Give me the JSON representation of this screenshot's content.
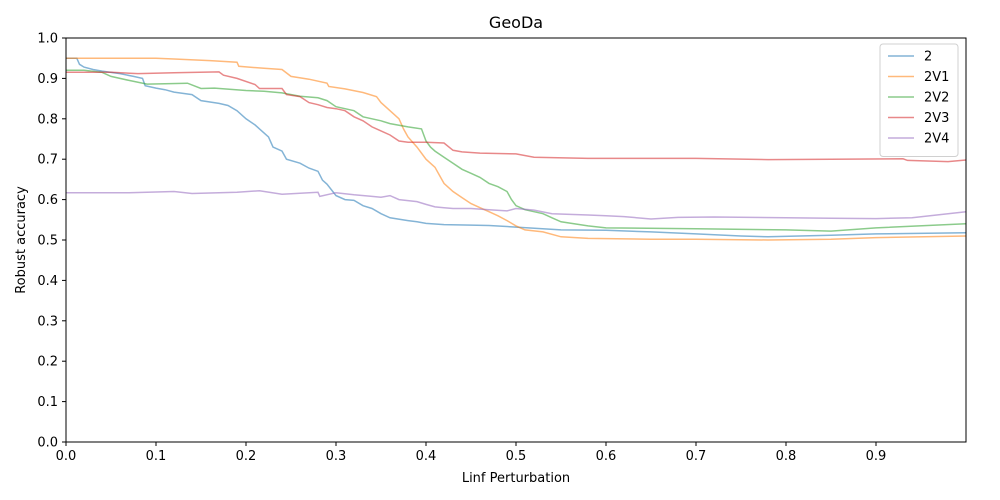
{
  "chart_data": {
    "type": "line",
    "title": "GeoDa",
    "xlabel": "Linf Perturbation",
    "ylabel": "Robust accuracy",
    "xlim": [
      0,
      1.0
    ],
    "ylim": [
      0,
      1.0
    ],
    "xticks": [
      "0.0",
      "0.1",
      "0.2",
      "0.3",
      "0.4",
      "0.5",
      "0.6",
      "0.7",
      "0.8",
      "0.9"
    ],
    "yticks": [
      "0.0",
      "0.1",
      "0.2",
      "0.3",
      "0.4",
      "0.5",
      "0.6",
      "0.7",
      "0.8",
      "0.9",
      "1.0"
    ],
    "grid": false,
    "legend": "top-right",
    "series": [
      {
        "name": "2",
        "color": "#1f77b4",
        "points": [
          [
            0.0,
            0.95
          ],
          [
            0.012,
            0.95
          ],
          [
            0.015,
            0.935
          ],
          [
            0.02,
            0.928
          ],
          [
            0.03,
            0.922
          ],
          [
            0.04,
            0.918
          ],
          [
            0.06,
            0.912
          ],
          [
            0.075,
            0.905
          ],
          [
            0.085,
            0.9
          ],
          [
            0.088,
            0.882
          ],
          [
            0.1,
            0.876
          ],
          [
            0.11,
            0.872
          ],
          [
            0.12,
            0.866
          ],
          [
            0.14,
            0.86
          ],
          [
            0.15,
            0.845
          ],
          [
            0.17,
            0.838
          ],
          [
            0.18,
            0.833
          ],
          [
            0.19,
            0.82
          ],
          [
            0.2,
            0.8
          ],
          [
            0.21,
            0.785
          ],
          [
            0.215,
            0.775
          ],
          [
            0.225,
            0.755
          ],
          [
            0.23,
            0.73
          ],
          [
            0.24,
            0.72
          ],
          [
            0.245,
            0.7
          ],
          [
            0.26,
            0.69
          ],
          [
            0.27,
            0.678
          ],
          [
            0.28,
            0.67
          ],
          [
            0.285,
            0.648
          ],
          [
            0.29,
            0.638
          ],
          [
            0.3,
            0.61
          ],
          [
            0.31,
            0.6
          ],
          [
            0.32,
            0.598
          ],
          [
            0.33,
            0.585
          ],
          [
            0.34,
            0.578
          ],
          [
            0.35,
            0.565
          ],
          [
            0.36,
            0.555
          ],
          [
            0.38,
            0.548
          ],
          [
            0.39,
            0.545
          ],
          [
            0.4,
            0.541
          ],
          [
            0.42,
            0.538
          ],
          [
            0.45,
            0.537
          ],
          [
            0.47,
            0.536
          ],
          [
            0.5,
            0.532
          ],
          [
            0.55,
            0.525
          ],
          [
            0.6,
            0.524
          ],
          [
            0.65,
            0.52
          ],
          [
            0.7,
            0.515
          ],
          [
            0.75,
            0.51
          ],
          [
            0.78,
            0.508
          ],
          [
            0.85,
            0.512
          ],
          [
            0.9,
            0.515
          ],
          [
            1.0,
            0.518
          ]
        ]
      },
      {
        "name": "2V1",
        "color": "#ff7f0e",
        "points": [
          [
            0.0,
            0.95
          ],
          [
            0.1,
            0.95
          ],
          [
            0.12,
            0.948
          ],
          [
            0.16,
            0.944
          ],
          [
            0.19,
            0.94
          ],
          [
            0.192,
            0.93
          ],
          [
            0.22,
            0.925
          ],
          [
            0.24,
            0.922
          ],
          [
            0.25,
            0.905
          ],
          [
            0.27,
            0.898
          ],
          [
            0.29,
            0.888
          ],
          [
            0.292,
            0.88
          ],
          [
            0.31,
            0.874
          ],
          [
            0.33,
            0.865
          ],
          [
            0.345,
            0.855
          ],
          [
            0.35,
            0.84
          ],
          [
            0.36,
            0.82
          ],
          [
            0.37,
            0.8
          ],
          [
            0.375,
            0.775
          ],
          [
            0.38,
            0.755
          ],
          [
            0.39,
            0.73
          ],
          [
            0.4,
            0.7
          ],
          [
            0.41,
            0.68
          ],
          [
            0.415,
            0.66
          ],
          [
            0.42,
            0.64
          ],
          [
            0.43,
            0.62
          ],
          [
            0.44,
            0.605
          ],
          [
            0.45,
            0.59
          ],
          [
            0.46,
            0.58
          ],
          [
            0.47,
            0.57
          ],
          [
            0.48,
            0.56
          ],
          [
            0.49,
            0.548
          ],
          [
            0.5,
            0.535
          ],
          [
            0.51,
            0.525
          ],
          [
            0.53,
            0.52
          ],
          [
            0.55,
            0.508
          ],
          [
            0.58,
            0.504
          ],
          [
            0.65,
            0.502
          ],
          [
            0.7,
            0.502
          ],
          [
            0.78,
            0.5
          ],
          [
            0.85,
            0.502
          ],
          [
            0.9,
            0.506
          ],
          [
            1.0,
            0.51
          ]
        ]
      },
      {
        "name": "2V2",
        "color": "#2ca02c",
        "points": [
          [
            0.0,
            0.92
          ],
          [
            0.02,
            0.92
          ],
          [
            0.04,
            0.915
          ],
          [
            0.05,
            0.905
          ],
          [
            0.07,
            0.895
          ],
          [
            0.09,
            0.886
          ],
          [
            0.11,
            0.887
          ],
          [
            0.135,
            0.888
          ],
          [
            0.15,
            0.875
          ],
          [
            0.165,
            0.876
          ],
          [
            0.2,
            0.87
          ],
          [
            0.22,
            0.868
          ],
          [
            0.24,
            0.864
          ],
          [
            0.26,
            0.856
          ],
          [
            0.28,
            0.852
          ],
          [
            0.29,
            0.845
          ],
          [
            0.3,
            0.83
          ],
          [
            0.32,
            0.82
          ],
          [
            0.33,
            0.805
          ],
          [
            0.35,
            0.795
          ],
          [
            0.36,
            0.788
          ],
          [
            0.38,
            0.78
          ],
          [
            0.395,
            0.775
          ],
          [
            0.4,
            0.745
          ],
          [
            0.405,
            0.73
          ],
          [
            0.41,
            0.72
          ],
          [
            0.42,
            0.705
          ],
          [
            0.43,
            0.69
          ],
          [
            0.44,
            0.675
          ],
          [
            0.45,
            0.665
          ],
          [
            0.46,
            0.655
          ],
          [
            0.47,
            0.64
          ],
          [
            0.48,
            0.632
          ],
          [
            0.49,
            0.62
          ],
          [
            0.495,
            0.6
          ],
          [
            0.5,
            0.585
          ],
          [
            0.51,
            0.575
          ],
          [
            0.52,
            0.57
          ],
          [
            0.53,
            0.565
          ],
          [
            0.54,
            0.555
          ],
          [
            0.55,
            0.545
          ],
          [
            0.58,
            0.535
          ],
          [
            0.6,
            0.53
          ],
          [
            0.7,
            0.528
          ],
          [
            0.8,
            0.525
          ],
          [
            0.85,
            0.522
          ],
          [
            0.9,
            0.53
          ],
          [
            1.0,
            0.54
          ]
        ]
      },
      {
        "name": "2V3",
        "color": "#d62728",
        "points": [
          [
            0.0,
            0.915
          ],
          [
            0.05,
            0.915
          ],
          [
            0.08,
            0.912
          ],
          [
            0.12,
            0.914
          ],
          [
            0.17,
            0.916
          ],
          [
            0.175,
            0.908
          ],
          [
            0.19,
            0.9
          ],
          [
            0.21,
            0.885
          ],
          [
            0.215,
            0.875
          ],
          [
            0.24,
            0.875
          ],
          [
            0.245,
            0.86
          ],
          [
            0.26,
            0.855
          ],
          [
            0.27,
            0.84
          ],
          [
            0.28,
            0.835
          ],
          [
            0.29,
            0.828
          ],
          [
            0.3,
            0.825
          ],
          [
            0.31,
            0.82
          ],
          [
            0.32,
            0.805
          ],
          [
            0.33,
            0.795
          ],
          [
            0.34,
            0.78
          ],
          [
            0.35,
            0.77
          ],
          [
            0.36,
            0.76
          ],
          [
            0.37,
            0.745
          ],
          [
            0.38,
            0.742
          ],
          [
            0.4,
            0.742
          ],
          [
            0.42,
            0.74
          ],
          [
            0.43,
            0.722
          ],
          [
            0.44,
            0.718
          ],
          [
            0.46,
            0.715
          ],
          [
            0.5,
            0.713
          ],
          [
            0.52,
            0.705
          ],
          [
            0.58,
            0.702
          ],
          [
            0.7,
            0.702
          ],
          [
            0.78,
            0.699
          ],
          [
            0.85,
            0.7
          ],
          [
            0.93,
            0.701
          ],
          [
            0.935,
            0.697
          ],
          [
            0.98,
            0.694
          ],
          [
            1.0,
            0.698
          ]
        ]
      },
      {
        "name": "2V4",
        "color": "#9467bd",
        "points": [
          [
            0.0,
            0.617
          ],
          [
            0.07,
            0.617
          ],
          [
            0.12,
            0.62
          ],
          [
            0.14,
            0.615
          ],
          [
            0.19,
            0.618
          ],
          [
            0.215,
            0.622
          ],
          [
            0.24,
            0.613
          ],
          [
            0.28,
            0.618
          ],
          [
            0.282,
            0.608
          ],
          [
            0.3,
            0.617
          ],
          [
            0.32,
            0.612
          ],
          [
            0.34,
            0.608
          ],
          [
            0.35,
            0.606
          ],
          [
            0.36,
            0.61
          ],
          [
            0.37,
            0.6
          ],
          [
            0.39,
            0.595
          ],
          [
            0.4,
            0.588
          ],
          [
            0.41,
            0.582
          ],
          [
            0.42,
            0.58
          ],
          [
            0.43,
            0.578
          ],
          [
            0.45,
            0.578
          ],
          [
            0.47,
            0.575
          ],
          [
            0.49,
            0.572
          ],
          [
            0.5,
            0.578
          ],
          [
            0.52,
            0.574
          ],
          [
            0.54,
            0.565
          ],
          [
            0.58,
            0.562
          ],
          [
            0.6,
            0.56
          ],
          [
            0.62,
            0.558
          ],
          [
            0.65,
            0.552
          ],
          [
            0.68,
            0.556
          ],
          [
            0.72,
            0.557
          ],
          [
            0.8,
            0.555
          ],
          [
            0.85,
            0.554
          ],
          [
            0.9,
            0.553
          ],
          [
            0.94,
            0.555
          ],
          [
            1.0,
            0.57
          ]
        ]
      }
    ]
  }
}
